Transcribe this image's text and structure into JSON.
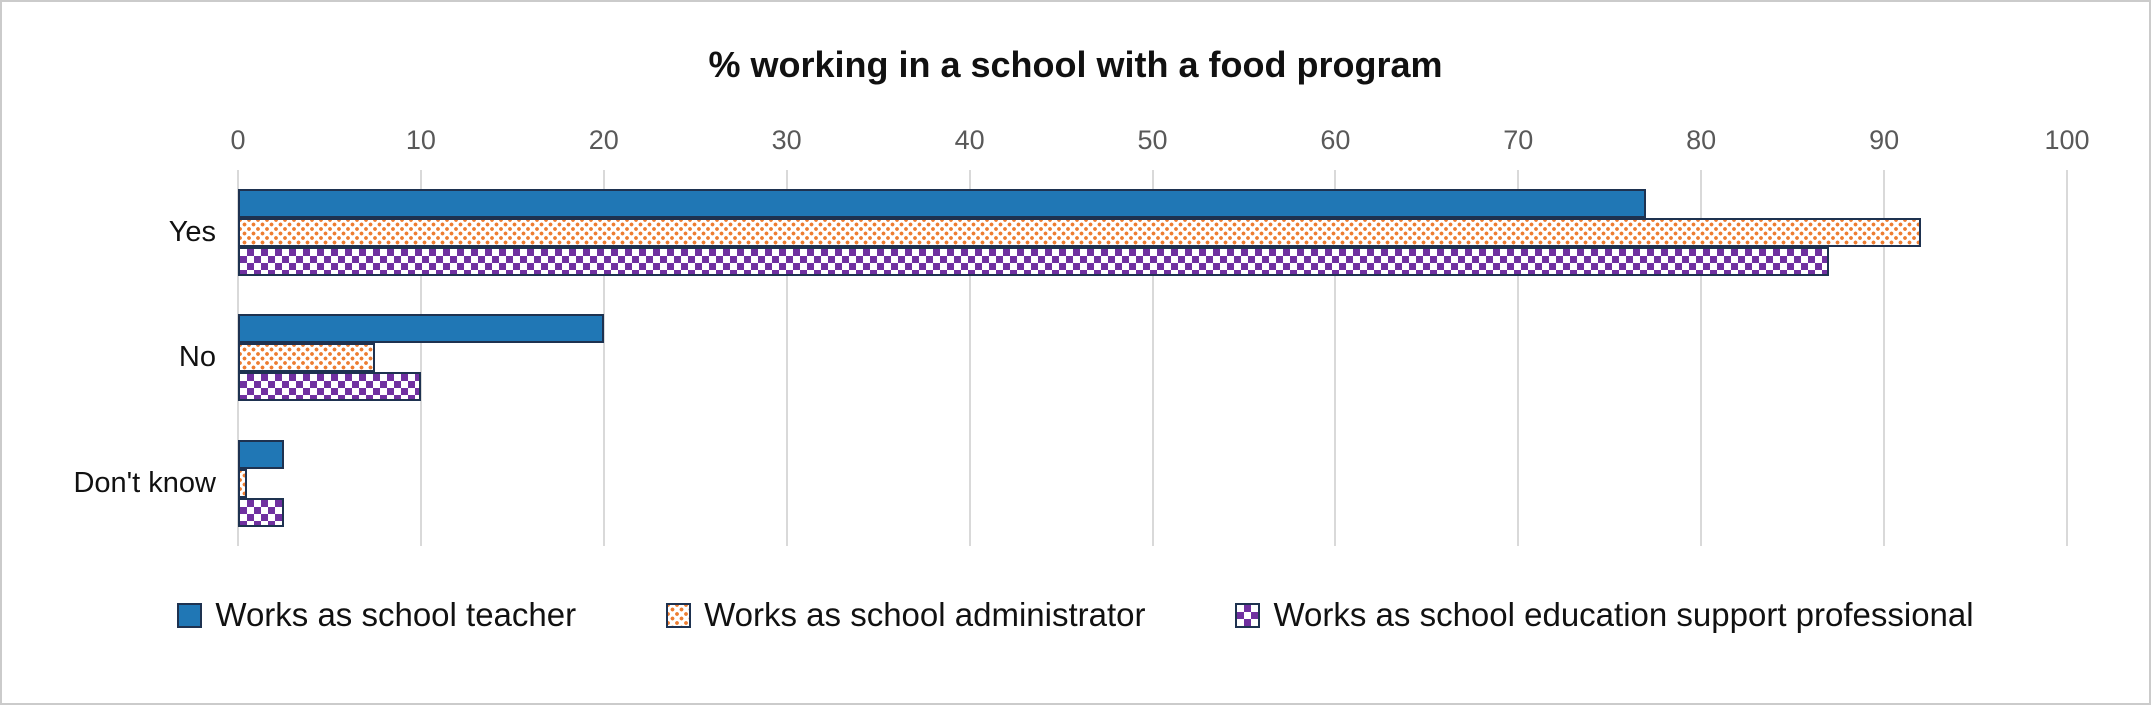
{
  "chart_data": {
    "type": "bar",
    "orientation": "horizontal",
    "title": "% working in a school with a food program",
    "categories": [
      "Yes",
      "No",
      "Don't know"
    ],
    "series": [
      {
        "name": "Works as school teacher",
        "pattern": "solid",
        "color": "#2077B5",
        "values": [
          77,
          20,
          2.5
        ]
      },
      {
        "name": "Works as school administrator",
        "pattern": "dots",
        "color": "#ED7D31",
        "values": [
          92,
          7.5,
          0.5
        ]
      },
      {
        "name": "Works as school education support professional",
        "pattern": "diamonds",
        "color": "#7030A0",
        "values": [
          87,
          10,
          2.5
        ]
      }
    ],
    "xlim": [
      0,
      100
    ],
    "x_ticks": [
      0,
      10,
      20,
      30,
      40,
      50,
      60,
      70,
      80,
      90,
      100
    ],
    "grid": true,
    "legend_position": "bottom",
    "axis_text_color": "#595959",
    "gridline_color": "#D9D9D9",
    "bar_outline_color": "#1E3250",
    "frame_border_color": "#CBCBCB"
  }
}
